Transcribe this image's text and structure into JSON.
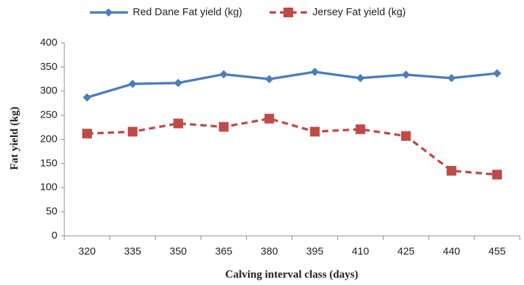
{
  "chart_data": {
    "type": "line",
    "categories": [
      "320",
      "335",
      "350",
      "365",
      "380",
      "395",
      "410",
      "425",
      "440",
      "455"
    ],
    "series": [
      {
        "name": "Red Dane Fat yield (kg)",
        "color": "#4a7ebb",
        "linestyle": "solid",
        "marker": "diamond",
        "values": [
          287,
          315,
          317,
          335,
          325,
          340,
          327,
          334,
          327,
          337
        ]
      },
      {
        "name": "Jersey Fat yield (kg)",
        "color": "#be4b48",
        "linestyle": "dashed",
        "marker": "square",
        "values": [
          212,
          216,
          233,
          226,
          243,
          216,
          221,
          207,
          135,
          127
        ]
      }
    ],
    "xlabel": "Calving interval class (days)",
    "ylabel": "Fat yield (kg)",
    "ylim": [
      0,
      400
    ],
    "yticks": [
      0,
      50,
      100,
      150,
      200,
      250,
      300,
      350,
      400
    ],
    "grid": false,
    "legend": "top"
  }
}
